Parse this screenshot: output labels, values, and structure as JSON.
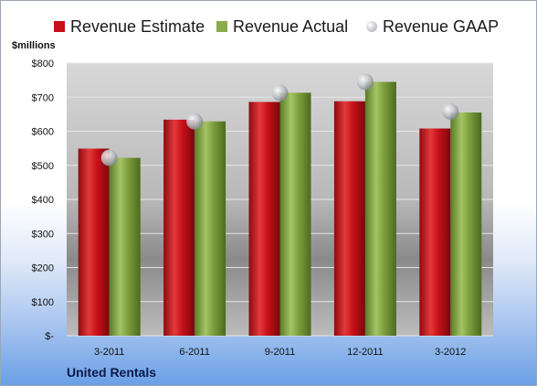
{
  "header": {
    "units_label": "$millions"
  },
  "footer": {
    "company": "United Rentals"
  },
  "colors": {
    "estimate": "#c8101a",
    "actual": "#7e9f3c",
    "gaap": "#c5c7cc"
  },
  "chart_data": {
    "type": "bar",
    "categories": [
      "3-2011",
      "6-2011",
      "9-2011",
      "12-2011",
      "3-2012"
    ],
    "series": [
      {
        "name": "Revenue Estimate",
        "kind": "bar",
        "values": [
          549,
          634,
          686,
          688,
          608
        ]
      },
      {
        "name": "Revenue Actual",
        "kind": "bar",
        "values": [
          522,
          629,
          713,
          745,
          655
        ]
      },
      {
        "name": "Revenue GAAP",
        "kind": "marker",
        "values": [
          522,
          629,
          713,
          745,
          658
        ]
      }
    ],
    "ylabel": "$millions",
    "ylim": [
      0,
      800
    ],
    "yticks": [
      0,
      100,
      200,
      300,
      400,
      500,
      600,
      700,
      800
    ],
    "ytick_labels": [
      "$-",
      "$100",
      "$200",
      "$300",
      "$400",
      "$500",
      "$600",
      "$700",
      "$800"
    ],
    "grid": true,
    "legend": "top"
  }
}
